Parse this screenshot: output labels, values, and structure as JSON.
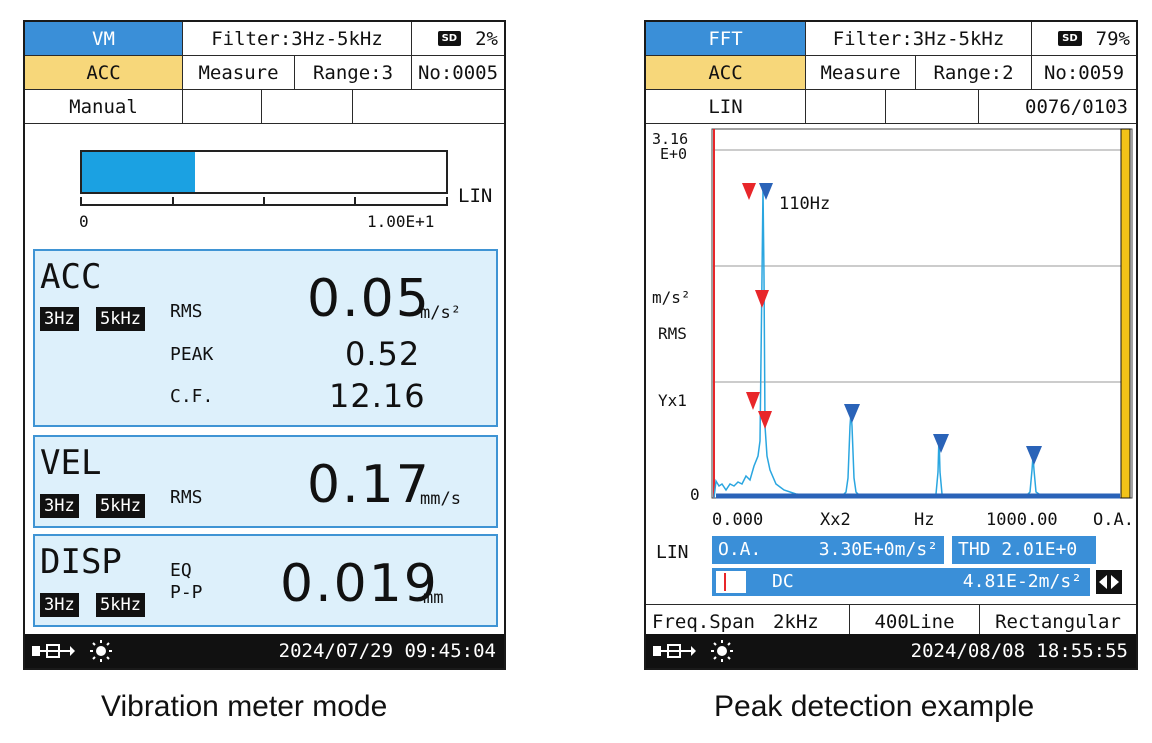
{
  "left": {
    "header": {
      "mode": "VM",
      "filter": "Filter:3Hz-5kHz",
      "sd_icon": "SD",
      "battery": "2%",
      "quantity": "ACC",
      "status": "Measure",
      "range": "Range:3",
      "number": "No:0005",
      "trigger": "Manual"
    },
    "bar": {
      "fill_fraction": 0.31,
      "min_label": "0",
      "max_label": "1.00E+1",
      "scale_label": "LIN"
    },
    "acc": {
      "name": "ACC",
      "filter_low": "3Hz",
      "filter_high": "5kHz",
      "rms_label": "RMS",
      "rms_value": "0.05",
      "unit": "m/s²",
      "peak_label": "PEAK",
      "peak_value": "0.52",
      "cf_label": "C.F.",
      "cf_value": "12.16"
    },
    "vel": {
      "name": "VEL",
      "filter_low": "3Hz",
      "filter_high": "5kHz",
      "rms_label": "RMS",
      "rms_value": "0.17",
      "unit": "mm/s"
    },
    "disp": {
      "name": "DISP",
      "filter_low": "3Hz",
      "filter_high": "5kHz",
      "eq_label": "EQ",
      "pp_label": "P-P",
      "value": "0.019",
      "unit": "mm"
    },
    "footer": {
      "datetime": "2024/07/29 09:45:04"
    }
  },
  "right": {
    "header": {
      "mode": "FFT",
      "filter": "Filter:3Hz-5kHz",
      "sd_icon": "SD",
      "battery": "79%",
      "quantity": "ACC",
      "status": "Measure",
      "range": "Range:2",
      "number": "No:0059",
      "scale": "LIN",
      "count": "0076/0103"
    },
    "chart": {
      "y_top_label_1": "3.16",
      "y_top_label_2": "E+0",
      "y_unit": "m/s²",
      "y_type": "RMS",
      "y_scale": "Yx1",
      "y_zero": "0",
      "x_min_label": "0.000",
      "x_zoom": "Xx2",
      "x_unit": "Hz",
      "x_max_label": "1000.00",
      "x_extra": "O.A.",
      "peak_label": "110Hz",
      "accent_red": "#e8262a",
      "accent_blue": "#2a63b8",
      "trace_color": "#2aa6e0"
    },
    "readouts": {
      "scale": "LIN",
      "oa_label": "O.A.",
      "oa_value": "3.30E+0m/s²",
      "thd_label": "THD",
      "thd_value": "2.01E+0",
      "dc_label": "DC",
      "dc_value": "4.81E-2m/s²"
    },
    "settings": {
      "span_label": "Freq.Span",
      "span_value": "2kHz",
      "lines": "400Line",
      "window": "Rectangular"
    },
    "footer": {
      "datetime": "2024/08/08 18:55:55"
    }
  },
  "captions": {
    "left": "Vibration meter mode",
    "right": "Peak detection example"
  },
  "icons": {
    "usb": "usb-power-icon",
    "backlight": "backlight-sun-icon",
    "sd": "sd-card-icon",
    "cursor_arrows": "left-right-arrows-icon"
  }
}
